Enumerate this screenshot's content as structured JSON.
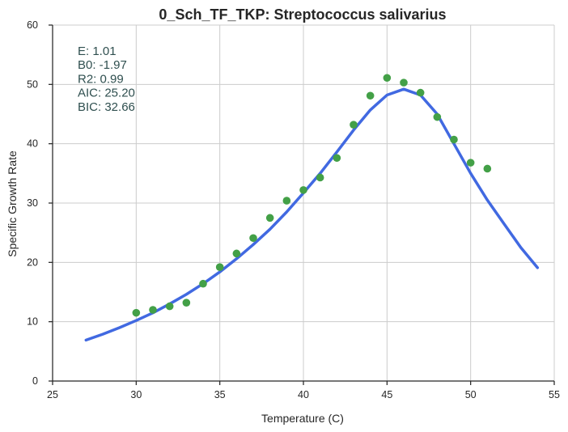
{
  "chart_data": {
    "type": "scatter",
    "title": "0_Sch_TF_TKP: Streptococcus salivarius",
    "xlabel": "Temperature (C)",
    "ylabel": "Specific Growth Rate",
    "xlim": [
      25,
      55
    ],
    "ylim": [
      0,
      60
    ],
    "xticks": [
      25,
      30,
      35,
      40,
      45,
      50,
      55
    ],
    "yticks": [
      0,
      10,
      20,
      30,
      40,
      50,
      60
    ],
    "grid": true,
    "annotations": [
      "E:  1.01",
      "B0:  -1.97",
      "R2:  0.99",
      "AIC: 25.20",
      "BIC: 32.66"
    ],
    "series": [
      {
        "type": "scatter",
        "color": "#43a047",
        "x": [
          30,
          31,
          32,
          33,
          34,
          35,
          36,
          37,
          38,
          39,
          40,
          41,
          42,
          43,
          44,
          45,
          46,
          47,
          48,
          49,
          50,
          51
        ],
        "y": [
          11.5,
          12.0,
          12.6,
          13.2,
          16.4,
          19.2,
          21.5,
          24.1,
          27.5,
          30.4,
          32.2,
          34.3,
          37.6,
          43.2,
          48.1,
          51.1,
          50.3,
          48.6,
          44.5,
          40.7,
          36.8,
          35.8
        ]
      },
      {
        "type": "line",
        "color": "#4169e1",
        "x": [
          27,
          28,
          29,
          30,
          31,
          32,
          33,
          34,
          35,
          36,
          37,
          38,
          39,
          40,
          41,
          42,
          43,
          44,
          45,
          46,
          47,
          48,
          49,
          50,
          51,
          52,
          53,
          54
        ],
        "y": [
          6.9,
          7.9,
          9.0,
          10.2,
          11.5,
          13.0,
          14.6,
          16.4,
          18.4,
          20.6,
          23.0,
          25.6,
          28.5,
          31.7,
          35.0,
          38.6,
          42.3,
          45.7,
          48.2,
          49.2,
          48.2,
          45.0,
          40.0,
          35.0,
          30.5,
          26.5,
          22.5,
          19.1
        ]
      }
    ]
  }
}
